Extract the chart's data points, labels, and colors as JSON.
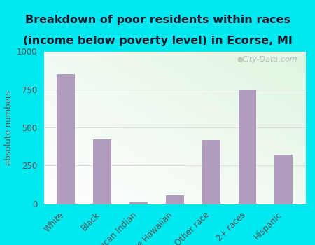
{
  "categories": [
    "White",
    "Black",
    "American Indian",
    "Native Hawaiian",
    "Other race",
    "2+ races",
    "Hispanic"
  ],
  "values": [
    850,
    420,
    5,
    55,
    415,
    750,
    320
  ],
  "bar_color": "#b09cbe",
  "title_line1": "Breakdown of poor residents within races",
  "title_line2": "(income below poverty level) in Ecorse, MI",
  "ylabel": "absolute numbers",
  "ylim": [
    0,
    1000
  ],
  "yticks": [
    0,
    250,
    500,
    750,
    1000
  ],
  "outer_bg": "#00e8f0",
  "title_fontsize": 11.5,
  "title_color": "#1a1a2e",
  "watermark": "City-Data.com",
  "grid_color": "#dddddd",
  "tick_color": "#555555",
  "ylabel_color": "#555555"
}
